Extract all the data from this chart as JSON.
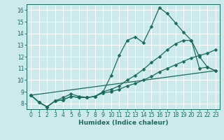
{
  "xlabel": "Humidex (Indice chaleur)",
  "bg_color": "#cce9ed",
  "grid_color": "#ffffff",
  "line_color": "#1a6b5a",
  "xlim": [
    -0.5,
    23.5
  ],
  "ylim": [
    7.5,
    16.5
  ],
  "xticks": [
    0,
    1,
    2,
    3,
    4,
    5,
    6,
    7,
    8,
    9,
    10,
    11,
    12,
    13,
    14,
    15,
    16,
    17,
    18,
    19,
    20,
    21,
    22,
    23
  ],
  "yticks": [
    8,
    9,
    10,
    11,
    12,
    13,
    14,
    15,
    16
  ],
  "line1_x": [
    0,
    1,
    2,
    3,
    4,
    5,
    6,
    7,
    8,
    9,
    10,
    11,
    12,
    13,
    14,
    15,
    16,
    17,
    18,
    19,
    20,
    21,
    22,
    23
  ],
  "line1_y": [
    8.7,
    8.1,
    7.7,
    8.2,
    8.3,
    8.6,
    8.5,
    8.5,
    8.6,
    9.0,
    10.4,
    12.1,
    13.4,
    13.7,
    13.2,
    14.6,
    16.2,
    15.7,
    14.9,
    14.1,
    13.4,
    12.0,
    11.1,
    10.8
  ],
  "line2_x": [
    0,
    1,
    2,
    3,
    4,
    5,
    6,
    7,
    8,
    9,
    10,
    11,
    12,
    13,
    14,
    15,
    16,
    17,
    18,
    19,
    20,
    21,
    22,
    23
  ],
  "line2_y": [
    8.7,
    8.1,
    7.7,
    8.2,
    8.5,
    8.8,
    8.6,
    8.5,
    8.6,
    9.0,
    9.2,
    9.5,
    10.0,
    10.4,
    10.9,
    11.5,
    12.0,
    12.6,
    13.1,
    13.4,
    13.4,
    11.0,
    11.1,
    10.8
  ],
  "line3_x": [
    0,
    1,
    2,
    3,
    4,
    5,
    6,
    7,
    8,
    9,
    10,
    11,
    12,
    13,
    14,
    15,
    16,
    17,
    18,
    19,
    20,
    21,
    22,
    23
  ],
  "line3_y": [
    8.7,
    8.1,
    7.7,
    8.2,
    8.3,
    8.6,
    8.5,
    8.5,
    8.6,
    8.9,
    9.0,
    9.2,
    9.5,
    9.7,
    10.0,
    10.3,
    10.7,
    11.0,
    11.3,
    11.6,
    11.9,
    12.1,
    12.3,
    12.6
  ],
  "line4_x": [
    0,
    23
  ],
  "line4_y": [
    8.7,
    10.8
  ],
  "markersize": 2.5,
  "linewidth": 0.9,
  "tick_fontsize": 5.5,
  "xlabel_fontsize": 6.5
}
